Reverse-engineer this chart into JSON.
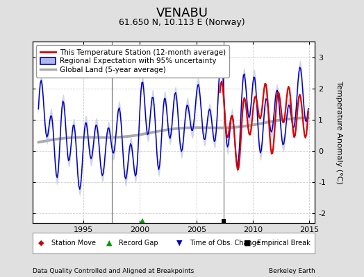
{
  "title": "VENABU",
  "subtitle": "61.650 N, 10.113 E (Norway)",
  "ylabel": "Temperature Anomaly (°C)",
  "xlabel_left": "Data Quality Controlled and Aligned at Breakpoints",
  "xlabel_right": "Berkeley Earth",
  "xlim": [
    1990.5,
    2015.5
  ],
  "ylim": [
    -2.3,
    3.5
  ],
  "yticks": [
    -2,
    -1,
    0,
    1,
    2,
    3
  ],
  "xticks": [
    1995,
    2000,
    2005,
    2010,
    2015
  ],
  "bg_color": "#e0e0e0",
  "plot_bg_color": "#ffffff",
  "grid_color": "#cccccc",
  "blue_line_color": "#0000bb",
  "blue_fill_color": "#b0b8e8",
  "red_line_color": "#dd0000",
  "gray_line_color": "#aaaaaa",
  "vert_line_color": "#666666",
  "vertical_lines": [
    1997.5,
    2007.4
  ],
  "record_gap_x": 2000.2,
  "empirical_break_x": 2007.4,
  "title_fontsize": 13,
  "subtitle_fontsize": 9,
  "axis_fontsize": 8,
  "tick_fontsize": 8,
  "legend_fontsize": 7.5
}
